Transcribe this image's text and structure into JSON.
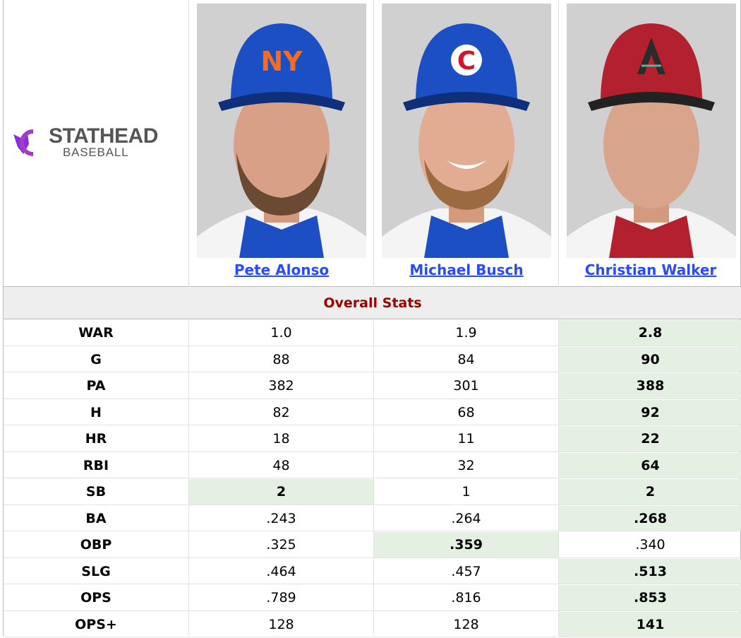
{
  "logo": {
    "name": "STATHEAD",
    "sub": "BASEBALL"
  },
  "players": [
    {
      "name": "Pete Alonso",
      "team_cap": "NY",
      "cap_color": "#1d4fc4",
      "logo_color": "#f26c21"
    },
    {
      "name": "Michael Busch",
      "team_cap": "C",
      "cap_color": "#1d4fc4",
      "logo_color": "#d2152a"
    },
    {
      "name": "Christian Walker",
      "team_cap": "A",
      "cap_color": "#b3202e",
      "logo_color": "#2b2b2b"
    }
  ],
  "section_title": "Overall Stats",
  "stats": [
    {
      "label": "WAR",
      "values": [
        "1.0",
        "1.9",
        "2.8"
      ],
      "best": [
        2
      ]
    },
    {
      "label": "G",
      "values": [
        "88",
        "84",
        "90"
      ],
      "best": [
        2
      ]
    },
    {
      "label": "PA",
      "values": [
        "382",
        "301",
        "388"
      ],
      "best": [
        2
      ]
    },
    {
      "label": "H",
      "values": [
        "82",
        "68",
        "92"
      ],
      "best": [
        2
      ]
    },
    {
      "label": "HR",
      "values": [
        "18",
        "11",
        "22"
      ],
      "best": [
        2
      ]
    },
    {
      "label": "RBI",
      "values": [
        "48",
        "32",
        "64"
      ],
      "best": [
        2
      ]
    },
    {
      "label": "SB",
      "values": [
        "2",
        "1",
        "2"
      ],
      "best": [
        0,
        2
      ]
    },
    {
      "label": "BA",
      "values": [
        ".243",
        ".264",
        ".268"
      ],
      "best": [
        2
      ]
    },
    {
      "label": "OBP",
      "values": [
        ".325",
        ".359",
        ".340"
      ],
      "best": [
        1
      ]
    },
    {
      "label": "SLG",
      "values": [
        ".464",
        ".457",
        ".513"
      ],
      "best": [
        2
      ]
    },
    {
      "label": "OPS",
      "values": [
        ".789",
        ".816",
        ".853"
      ],
      "best": [
        2
      ]
    },
    {
      "label": "OPS+",
      "values": [
        "128",
        "128",
        "141"
      ],
      "best": [
        2
      ]
    }
  ],
  "colors": {
    "highlight": "#e3f0e2",
    "section_title": "#990000",
    "link": "#2a4aff"
  }
}
